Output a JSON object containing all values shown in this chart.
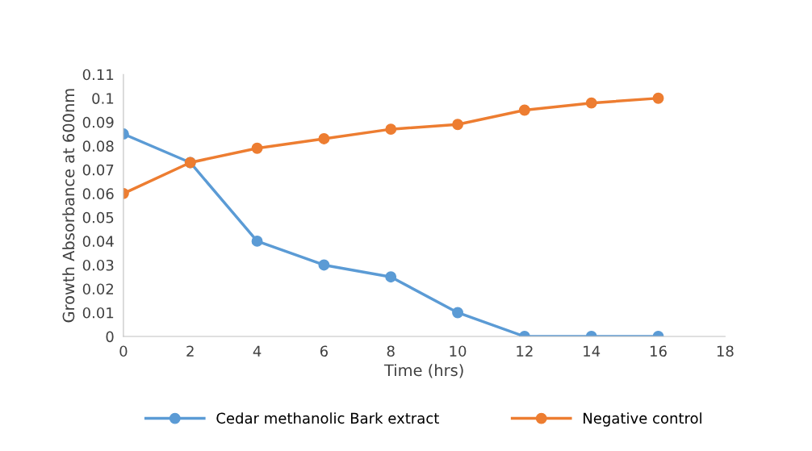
{
  "chart_data": {
    "type": "line",
    "xlabel": "Time (hrs)",
    "ylabel": "Growth Absorbance at 600nm",
    "x": [
      0,
      2,
      4,
      6,
      8,
      10,
      12,
      14,
      16
    ],
    "series": [
      {
        "name": "Cedar methanolic Bark extract",
        "color": "#5b9bd5",
        "values": [
          0.085,
          0.073,
          0.04,
          0.03,
          0.025,
          0.01,
          0,
          0,
          0
        ]
      },
      {
        "name": "Negative control",
        "color": "#ed7d31",
        "values": [
          0.06,
          0.073,
          0.079,
          0.083,
          0.087,
          0.089,
          0.095,
          0.098,
          0.1
        ]
      }
    ],
    "xlim": [
      0,
      18
    ],
    "xticks": [
      0,
      2,
      4,
      6,
      8,
      10,
      12,
      14,
      16,
      18
    ],
    "ylim": [
      0,
      0.11
    ],
    "yticks": [
      0,
      0.01,
      0.02,
      0.03,
      0.04,
      0.05,
      0.06,
      0.07,
      0.08,
      0.09,
      0.1,
      0.11
    ],
    "grid": false,
    "legend": "bottom",
    "marker": "circle",
    "line_style": "solid"
  }
}
